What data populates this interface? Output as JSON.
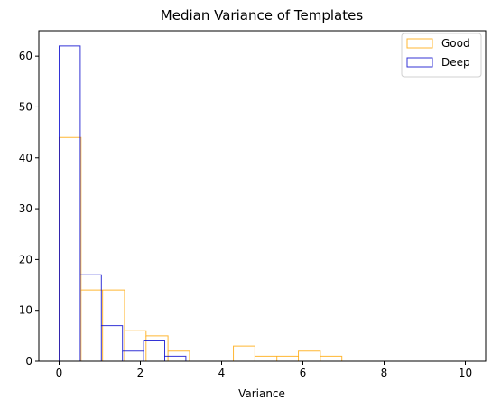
{
  "chart_data": {
    "type": "bar",
    "title": "Median Variance of Templates",
    "xlabel": "Variance",
    "ylabel": "",
    "xlim": [
      -0.5,
      10.5
    ],
    "ylim": [
      0,
      65
    ],
    "xticks": [
      0,
      2,
      4,
      6,
      8,
      10
    ],
    "yticks": [
      0,
      10,
      20,
      30,
      40,
      50,
      60
    ],
    "legend_position": "top-right",
    "grid": false,
    "series": [
      {
        "name": "Good",
        "color": "#FFA500",
        "bins": [
          {
            "x0": 0.0,
            "x1": 0.54,
            "count": 44
          },
          {
            "x0": 0.54,
            "x1": 1.07,
            "count": 14
          },
          {
            "x0": 1.07,
            "x1": 1.61,
            "count": 14
          },
          {
            "x0": 1.61,
            "x1": 2.14,
            "count": 6
          },
          {
            "x0": 2.14,
            "x1": 2.68,
            "count": 5
          },
          {
            "x0": 2.68,
            "x1": 3.21,
            "count": 2
          },
          {
            "x0": 3.21,
            "x1": 3.75,
            "count": 0
          },
          {
            "x0": 3.75,
            "x1": 4.29,
            "count": 0
          },
          {
            "x0": 4.29,
            "x1": 4.82,
            "count": 3
          },
          {
            "x0": 4.82,
            "x1": 5.36,
            "count": 1
          },
          {
            "x0": 5.36,
            "x1": 5.89,
            "count": 1
          },
          {
            "x0": 5.89,
            "x1": 6.43,
            "count": 2
          },
          {
            "x0": 6.43,
            "x1": 6.96,
            "count": 1
          }
        ]
      },
      {
        "name": "Deep",
        "color": "#0000CC",
        "bins": [
          {
            "x0": 0.0,
            "x1": 0.52,
            "count": 62
          },
          {
            "x0": 0.52,
            "x1": 1.04,
            "count": 17
          },
          {
            "x0": 1.04,
            "x1": 1.56,
            "count": 7
          },
          {
            "x0": 1.56,
            "x1": 2.08,
            "count": 2
          },
          {
            "x0": 2.08,
            "x1": 2.6,
            "count": 4
          },
          {
            "x0": 2.6,
            "x1": 3.12,
            "count": 1
          },
          {
            "x0": 3.12,
            "x1": 3.64,
            "count": 0
          },
          {
            "x0": 3.64,
            "x1": 4.16,
            "count": 0
          },
          {
            "x0": 4.16,
            "x1": 4.68,
            "count": 0
          },
          {
            "x0": 4.68,
            "x1": 5.2,
            "count": 0
          },
          {
            "x0": 5.2,
            "x1": 5.72,
            "count": 0
          },
          {
            "x0": 5.72,
            "x1": 6.24,
            "count": 0
          },
          {
            "x0": 6.24,
            "x1": 6.76,
            "count": 0
          },
          {
            "x0": 6.76,
            "x1": 7.28,
            "count": 0
          },
          {
            "x0": 7.28,
            "x1": 7.8,
            "count": 0
          },
          {
            "x0": 7.8,
            "x1": 8.32,
            "count": 0
          },
          {
            "x0": 8.32,
            "x1": 8.84,
            "count": 0
          },
          {
            "x0": 8.84,
            "x1": 9.36,
            "count": 0
          },
          {
            "x0": 9.36,
            "x1": 9.88,
            "count": 0
          },
          {
            "x0": 9.88,
            "x1": 10.4,
            "count": 0
          }
        ]
      }
    ]
  }
}
